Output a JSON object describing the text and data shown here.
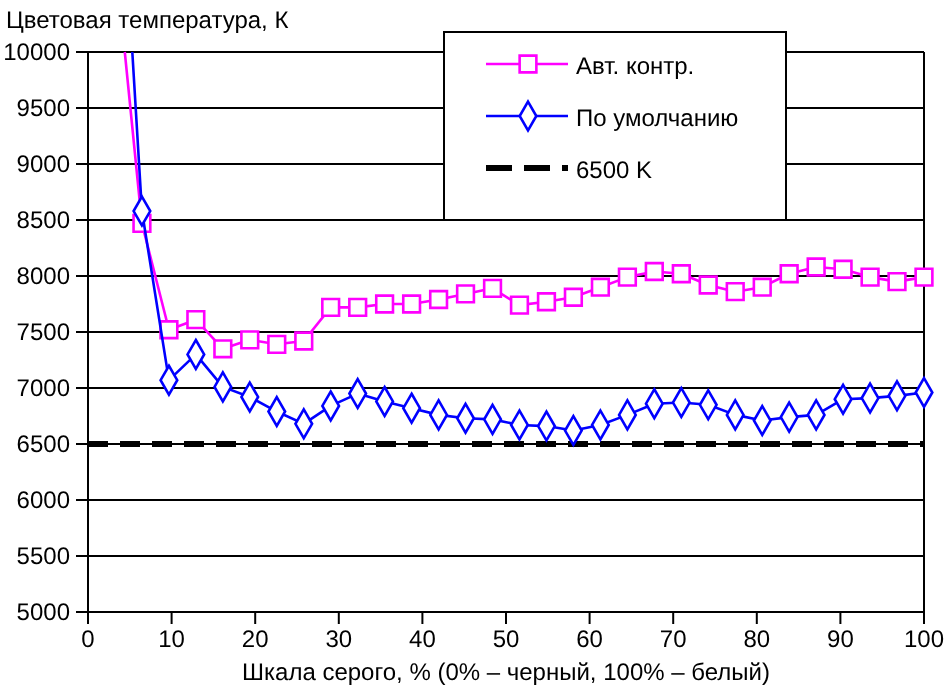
{
  "chart_data": {
    "type": "line",
    "title": null,
    "ylabel": "Цветовая температура, К",
    "xlabel": "Шкала серого, % (0% – черный, 100% – белый)",
    "xlim": [
      0,
      100
    ],
    "xticks": [
      0,
      10,
      20,
      30,
      40,
      50,
      60,
      70,
      80,
      90,
      100
    ],
    "ylim": [
      5000,
      10000
    ],
    "yticks": [
      5000,
      5500,
      6000,
      6500,
      7000,
      7500,
      8000,
      8500,
      9000,
      9500,
      10000
    ],
    "grid": "y",
    "legend": "top right",
    "line_style": "solid",
    "series": [
      {
        "name": "Авт. контр.",
        "color": "#ff00ff",
        "marker": "square",
        "x": [
          4.4,
          6.45,
          9.68,
          12.9,
          16.13,
          19.35,
          22.58,
          25.81,
          29.03,
          32.26,
          35.48,
          38.71,
          41.94,
          45.16,
          48.39,
          51.61,
          54.84,
          58.06,
          61.29,
          64.52,
          67.74,
          70.97,
          74.19,
          77.42,
          80.65,
          83.87,
          87.1,
          90.32,
          93.55,
          96.77,
          100
        ],
        "values": [
          10000,
          8470,
          7520,
          7610,
          7350,
          7430,
          7390,
          7420,
          7720,
          7720,
          7750,
          7750,
          7790,
          7840,
          7890,
          7740,
          7770,
          7810,
          7900,
          7990,
          8040,
          8020,
          7920,
          7860,
          7900,
          8020,
          8080,
          8060,
          7990,
          7950,
          7990
        ]
      },
      {
        "name": "По умолчанию",
        "color": "#0000ff",
        "marker": "diamond",
        "x": [
          5.3,
          6.45,
          9.68,
          12.9,
          16.13,
          19.35,
          22.58,
          25.81,
          29.03,
          32.26,
          35.48,
          38.71,
          41.94,
          45.16,
          48.39,
          51.61,
          54.84,
          58.06,
          61.29,
          64.52,
          67.74,
          70.97,
          74.19,
          77.42,
          80.65,
          83.87,
          87.1,
          90.32,
          93.55,
          96.77,
          100
        ],
        "values": [
          10000,
          8580,
          7070,
          7300,
          7010,
          6920,
          6790,
          6680,
          6840,
          6950,
          6880,
          6820,
          6760,
          6730,
          6720,
          6670,
          6660,
          6620,
          6670,
          6760,
          6860,
          6870,
          6850,
          6760,
          6710,
          6740,
          6760,
          6900,
          6910,
          6930,
          6960
        ]
      }
    ],
    "ref_lines": [
      {
        "axis": "y",
        "value": 6500,
        "label": "6500 K",
        "color": "#000000",
        "line_style": "dashed"
      }
    ]
  }
}
